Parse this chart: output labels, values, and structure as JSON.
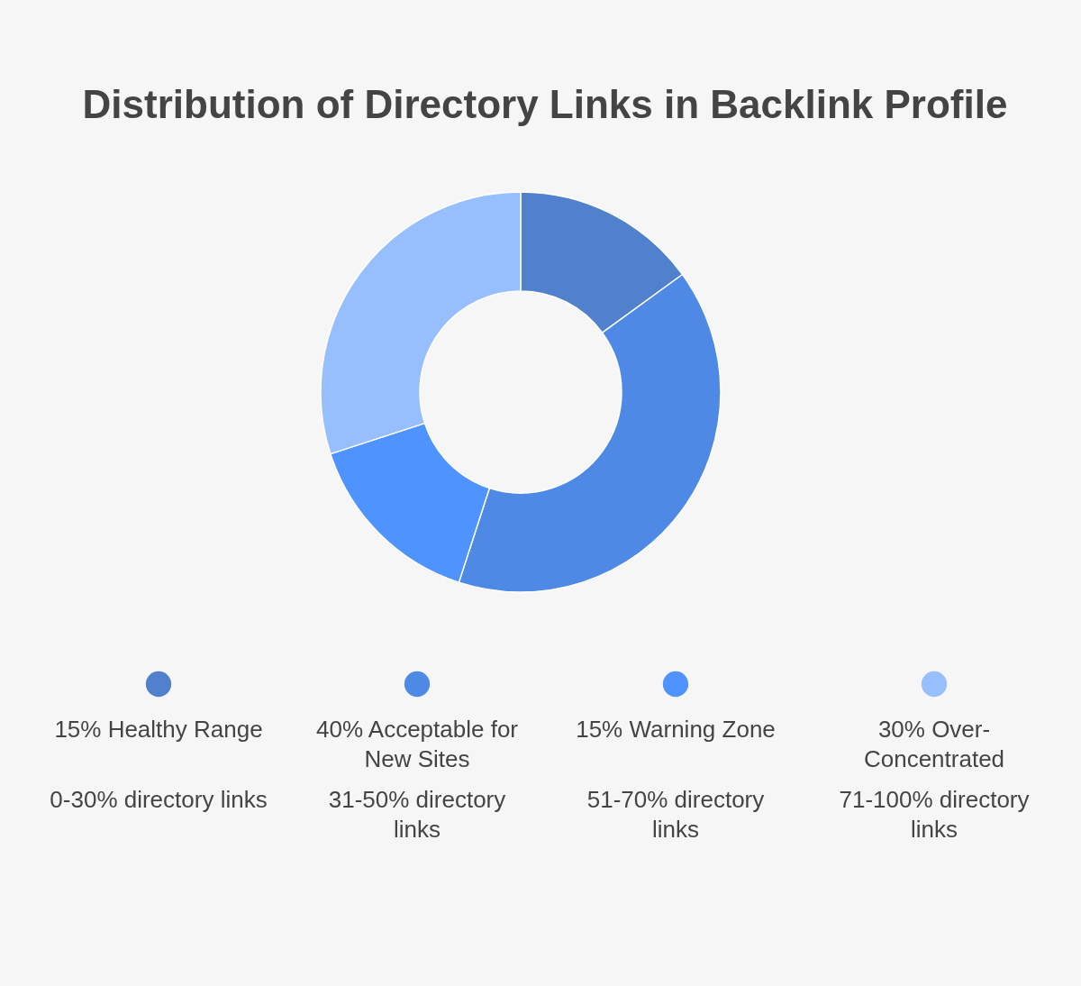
{
  "chart_data": {
    "type": "donut",
    "title": "Distribution of Directory Links in Backlink Profile",
    "categories": [
      "Healthy Range",
      "Acceptable for New Sites",
      "Warning Zone",
      "Over-Concentrated"
    ],
    "values": [
      15,
      40,
      15,
      30
    ],
    "value_labels": [
      "15%",
      "40%",
      "15%",
      "30%"
    ],
    "colors": [
      "#5181cc",
      "#4f89e6",
      "#4f93fe",
      "#97befd"
    ],
    "legend": "bottom",
    "annotations": [
      "0-30% directory links",
      "31-50% directory links",
      "51-70% directory links",
      "71-100% directory links"
    ]
  }
}
